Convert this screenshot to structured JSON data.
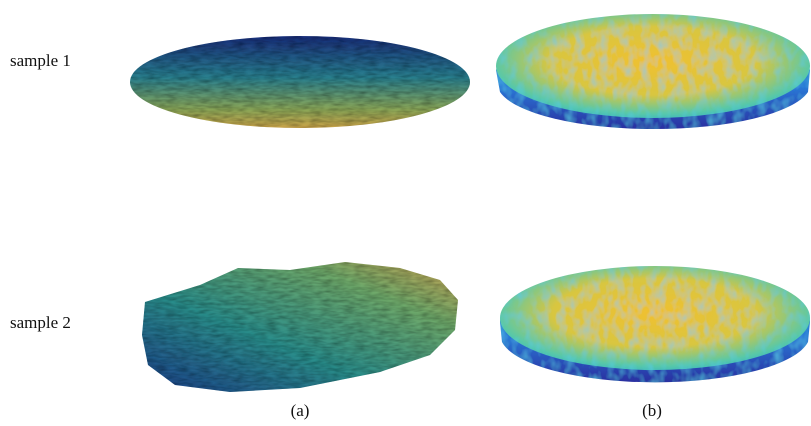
{
  "rows": [
    {
      "label": "sample 1"
    },
    {
      "label": "sample 2"
    }
  ],
  "columns": [
    {
      "label": "(a)"
    },
    {
      "label": "(b)"
    }
  ]
}
